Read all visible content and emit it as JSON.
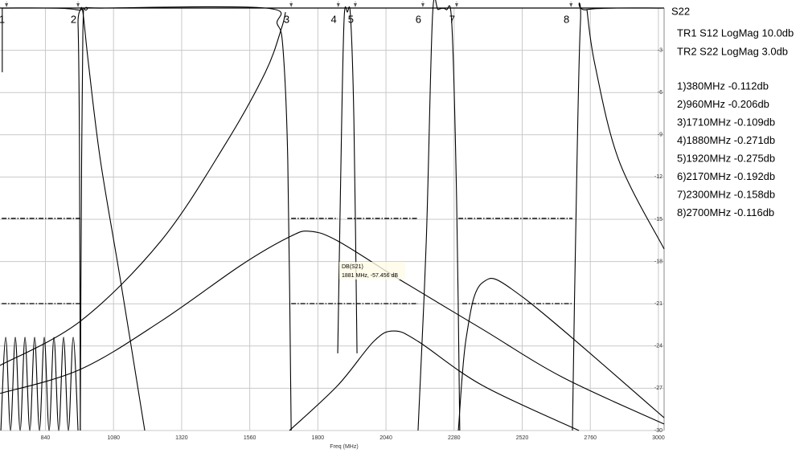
{
  "chart_data": {
    "type": "line",
    "xlabel": "Freq (MHz)",
    "xlim": [
      680,
      3020
    ],
    "ylim": [
      -30,
      0
    ],
    "xticks": [
      840,
      1080,
      1320,
      1560,
      1800,
      2040,
      2280,
      2520,
      2760,
      3000
    ],
    "yticks": [
      -3,
      -6,
      -9,
      -12,
      -15,
      -18,
      -21,
      -24,
      -27,
      -30
    ],
    "grid": true,
    "series": [
      {
        "color": "#000000",
        "x": [
          680,
          946,
          955,
          960,
          963
        ],
        "values": [
          0,
          -0.11,
          -1.14,
          -10,
          -30
        ]
      },
      {
        "color": "#000000",
        "x": [
          688,
          688
        ],
        "values": [
          0,
          -4.56
        ]
      },
      {
        "color": "#000000",
        "x": [
          963,
          966,
          972,
          986,
          1048,
          1615,
          1657,
          1677,
          1694,
          1706
        ],
        "values": [
          -30,
          -16.54,
          -1.71,
          -0.11,
          0,
          0,
          -1.14,
          -2.85,
          -10.84,
          -30
        ]
      },
      {
        "color": "#000000",
        "x": [
          963,
          972,
          992,
          1034,
          1105,
          1190
        ],
        "values": [
          -0.11,
          -0.29,
          -3.99,
          -10.84,
          -19.39,
          -30
        ]
      },
      {
        "color": "#000000",
        "x": [
          680,
          963,
          1247,
          1473,
          1615,
          1672,
          1686
        ],
        "values": [
          -25.38,
          -22.24,
          -16.54,
          -9.7,
          -4.56,
          -1.43,
          -0.29
        ]
      },
      {
        "color": "#000000",
        "x": [
          680,
          963,
          1247,
          1530,
          1700,
          1771,
          1870,
          2097,
          2380,
          2663,
          3020
        ],
        "values": [
          -27.37,
          -25.66,
          -22.24,
          -18.25,
          -16.25,
          -15.85,
          -16.54,
          -19.39,
          -22.81,
          -26.23,
          -29.54
        ]
      },
      {
        "color": "#000000",
        "x": [
          1700,
          1870,
          1997,
          2068,
          2153,
          2380,
          2720
        ],
        "values": [
          -30,
          -26.8,
          -23.67,
          -22.93,
          -23.67,
          -26.8,
          -30
        ]
      },
      {
        "color": "#000000",
        "x": [
          1870,
          1884,
          1893,
          1904,
          1915,
          1927,
          1938
        ],
        "values": [
          -24.52,
          -7.98,
          -0.57,
          -0.29,
          -0.57,
          -7.98,
          -24.52
        ]
      },
      {
        "color": "#000000",
        "x": [
          2153,
          2182,
          2204,
          2224,
          2252,
          2272,
          2289,
          2300
        ],
        "values": [
          -30,
          -16.54,
          -0.57,
          -0.11,
          -0.11,
          -1.14,
          -13.69,
          -30
        ]
      },
      {
        "color": "#000000",
        "x": [
          2697,
          2708,
          2725,
          2748,
          3020
        ],
        "values": [
          -30,
          -16.54,
          -1.14,
          -0.11,
          0
        ]
      },
      {
        "color": "#000000",
        "x": [
          2748,
          2776,
          2861,
          3020
        ],
        "values": [
          -0.11,
          -3.99,
          -10.84,
          -17.11
        ]
      },
      {
        "color": "#000000",
        "x": [
          2295,
          2323,
          2380,
          2522,
          3020
        ],
        "values": [
          -30,
          -23.38,
          -19.5,
          -20.53,
          -29.09
        ]
      },
      {
        "color": "#000000",
        "x": [
          683,
          700,
          717,
          734,
          751,
          768,
          785,
          802,
          819,
          836,
          853,
          870,
          887,
          904,
          921,
          938,
          955
        ],
        "values": [
          -30,
          -23.38,
          -30,
          -23.38,
          -30,
          -23.38,
          -30,
          -23.38,
          -30,
          -23.38,
          -30,
          -23.38,
          -30,
          -23.38,
          -30,
          -23.38,
          -30
        ]
      },
      {
        "color": "#000000",
        "style": "dashdot",
        "x": [
          686,
          963,
          null,
          1706,
          1870,
          null,
          1904,
          2153,
          null,
          2295,
          2697
        ],
        "values": [
          -14.94,
          -14.94,
          null,
          -14.94,
          -14.94,
          null,
          -14.94,
          -14.94,
          null,
          -14.94,
          -14.94
        ]
      },
      {
        "color": "#000000",
        "style": "dashdot",
        "x": [
          686,
          963,
          null,
          1706,
          2153,
          null,
          2309,
          2697
        ],
        "values": [
          -20.99,
          -20.99,
          null,
          -20.99,
          -20.99,
          null,
          -20.99,
          -20.99
        ]
      }
    ],
    "markers": [
      {
        "label": "1",
        "x": 703
      },
      {
        "label": "2",
        "x": 955
      },
      {
        "label": "3",
        "x": 1706
      },
      {
        "label": "4",
        "x": 1872
      },
      {
        "label": "5",
        "x": 1932
      },
      {
        "label": "6",
        "x": 2170
      },
      {
        "label": "7",
        "x": 2289
      },
      {
        "label": "8",
        "x": 2692
      }
    ],
    "tooltip": {
      "title": "DB(S21)",
      "text": "1881 MHz, -57.456 dB"
    }
  },
  "panel": {
    "trace_label": "S22",
    "traces": [
      "TR1 S12 LogMag 10.0db",
      "TR2 S22 LogMag 3.0db"
    ],
    "readouts": [
      "1)380MHz  -0.112db",
      "2)960MHz  -0.206db",
      "3)1710MHz  -0.109db",
      "4)1880MHz  -0.271db",
      "5)1920MHz  -0.275db",
      "6)2170MHz  -0.192db",
      "7)2300MHz  -0.158db",
      "8)2700MHz  -0.116db"
    ]
  }
}
